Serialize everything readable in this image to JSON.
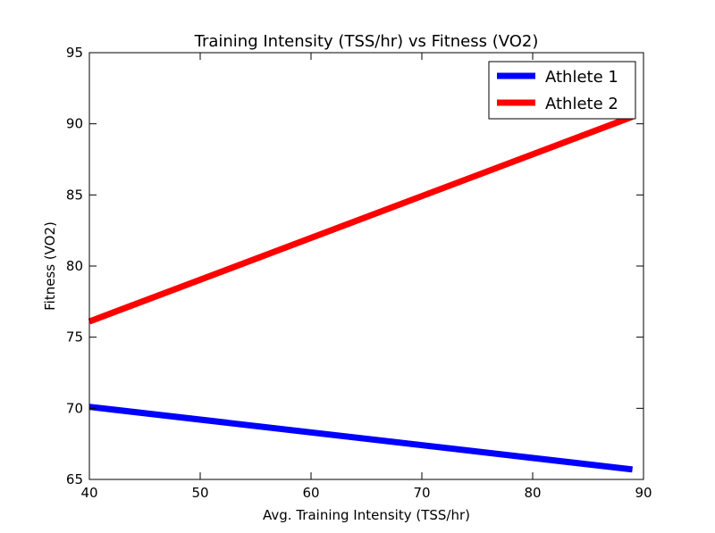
{
  "chart_data": {
    "type": "line",
    "title": "Training Intensity (TSS/hr) vs Fitness (VO2)",
    "xlabel": "Avg. Training Intensity (TSS/hr)",
    "ylabel": "Fitness (VO2)",
    "xlim": [
      40,
      90
    ],
    "ylim": [
      65,
      95
    ],
    "xticks": [
      "40",
      "50",
      "60",
      "70",
      "80",
      "90"
    ],
    "yticks": [
      "65",
      "70",
      "75",
      "80",
      "85",
      "90",
      "95"
    ],
    "grid": false,
    "legend_position": "top-right",
    "series": [
      {
        "name": "Athlete 1",
        "color": "#0000ff",
        "x": [
          40,
          89
        ],
        "y": [
          70.1,
          65.7
        ]
      },
      {
        "name": "Athlete 2",
        "color": "#ff0000",
        "x": [
          40,
          89
        ],
        "y": [
          76.1,
          90.5
        ]
      }
    ]
  }
}
